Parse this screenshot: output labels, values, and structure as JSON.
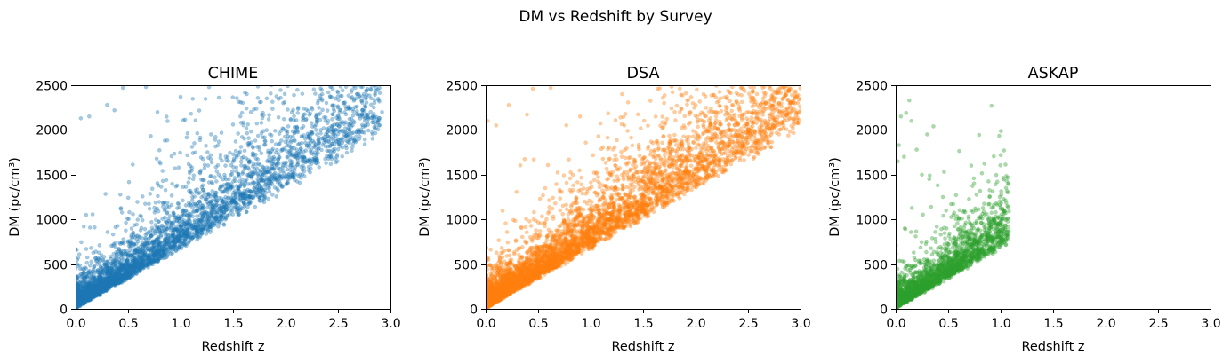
{
  "figure": {
    "suptitle": "DM vs Redshift by Survey"
  },
  "chart_data": [
    {
      "type": "scatter",
      "title": "CHIME",
      "xlabel": "Redshift z",
      "ylabel": "DM (pc/cm³)",
      "xlim": [
        0,
        3.0
      ],
      "ylim": [
        0,
        2500
      ],
      "xticks": [
        "0.0",
        "0.5",
        "1.0",
        "1.5",
        "2.0",
        "2.5",
        "3.0"
      ],
      "yticks": [
        "0",
        "500",
        "1000",
        "1500",
        "2000",
        "2500"
      ],
      "color": "#1f77b4",
      "alpha": 0.4,
      "grid": false,
      "distribution": {
        "n": 4500,
        "z_max": 2.9,
        "trend_slope_dm_per_z": 850,
        "lower_edge_slope": 650,
        "upper_scatter_tail": true
      },
      "points": [
        [
          0.45,
          2470
        ],
        [
          0.67,
          2480
        ],
        [
          1.0,
          2370
        ],
        [
          2.65,
          2490
        ],
        [
          2.78,
          2460
        ],
        [
          2.92,
          2200
        ],
        [
          2.5,
          2160
        ],
        [
          2.38,
          2100
        ],
        [
          2.17,
          2040
        ],
        [
          2.45,
          2000
        ],
        [
          1.98,
          2010
        ],
        [
          2.05,
          2120
        ],
        [
          1.33,
          1890
        ],
        [
          1.55,
          1720
        ],
        [
          1.72,
          1680
        ],
        [
          1.8,
          1560
        ],
        [
          1.23,
          1610
        ],
        [
          0.13,
          2150
        ],
        [
          0.05,
          2130
        ],
        [
          0.3,
          2280
        ],
        [
          0.37,
          2220
        ],
        [
          0.78,
          2200
        ],
        [
          1.1,
          2180
        ],
        [
          1.95,
          1400
        ],
        [
          1.65,
          1500
        ],
        [
          2.3,
          1950
        ],
        [
          2.25,
          2250
        ],
        [
          1.5,
          2060
        ],
        [
          0.85,
          1880
        ]
      ]
    },
    {
      "type": "scatter",
      "title": "DSA",
      "xlabel": "Redshift z",
      "ylabel": "DM (pc/cm³)",
      "xlim": [
        0,
        3.0
      ],
      "ylim": [
        0,
        2500
      ],
      "xticks": [
        "0.0",
        "0.5",
        "1.0",
        "1.5",
        "2.0",
        "2.5",
        "3.0"
      ],
      "yticks": [
        "0",
        "500",
        "1000",
        "1500",
        "2000",
        "2500"
      ],
      "color": "#ff7f0e",
      "alpha": 0.4,
      "grid": false,
      "distribution": {
        "n": 6000,
        "z_max": 3.0,
        "trend_slope_dm_per_z": 900,
        "lower_edge_slope": 650,
        "upper_scatter_tail": true
      },
      "points": [
        [
          0.22,
          2280
        ],
        [
          0.45,
          2460
        ],
        [
          0.62,
          2470
        ],
        [
          2.55,
          2360
        ],
        [
          2.85,
          2470
        ],
        [
          2.9,
          2180
        ],
        [
          2.3,
          2350
        ],
        [
          2.0,
          2280
        ],
        [
          1.85,
          2200
        ],
        [
          2.7,
          2250
        ],
        [
          0.1,
          2050
        ],
        [
          0.02,
          2100
        ],
        [
          1.3,
          2400
        ],
        [
          2.1,
          1900
        ],
        [
          2.5,
          2000
        ],
        [
          1.7,
          2300
        ],
        [
          0.9,
          2150
        ],
        [
          2.35,
          2480
        ]
      ]
    },
    {
      "type": "scatter",
      "title": "ASKAP",
      "xlabel": "Redshift z",
      "ylabel": "DM (pc/cm³)",
      "xlim": [
        0,
        3.0
      ],
      "ylim": [
        0,
        2500
      ],
      "xticks": [
        "0.0",
        "0.5",
        "1.0",
        "1.5",
        "2.0",
        "2.5",
        "3.0"
      ],
      "yticks": [
        "0",
        "500",
        "1000",
        "1500",
        "2000",
        "2500"
      ],
      "color": "#2ca02c",
      "alpha": 0.4,
      "grid": false,
      "distribution": {
        "n": 2500,
        "z_max": 1.08,
        "trend_slope_dm_per_z": 700,
        "lower_edge_slope": 650,
        "upper_scatter_tail": true
      },
      "points": [
        [
          0.13,
          2330
        ],
        [
          0.1,
          2190
        ],
        [
          0.05,
          2150
        ],
        [
          0.15,
          2100
        ],
        [
          0.36,
          2040
        ],
        [
          0.3,
          1950
        ],
        [
          0.03,
          1830
        ],
        [
          0.08,
          1700
        ],
        [
          0.02,
          1650
        ],
        [
          0.2,
          1780
        ],
        [
          1.05,
          760
        ],
        [
          0.98,
          830
        ],
        [
          0.92,
          820
        ],
        [
          0.84,
          700
        ],
        [
          0.78,
          660
        ],
        [
          0.72,
          850
        ],
        [
          0.66,
          940
        ],
        [
          0.55,
          1050
        ],
        [
          0.45,
          1250
        ],
        [
          0.4,
          1380
        ],
        [
          0.25,
          1500
        ],
        [
          0.32,
          1450
        ],
        [
          0.6,
          1000
        ]
      ]
    }
  ]
}
